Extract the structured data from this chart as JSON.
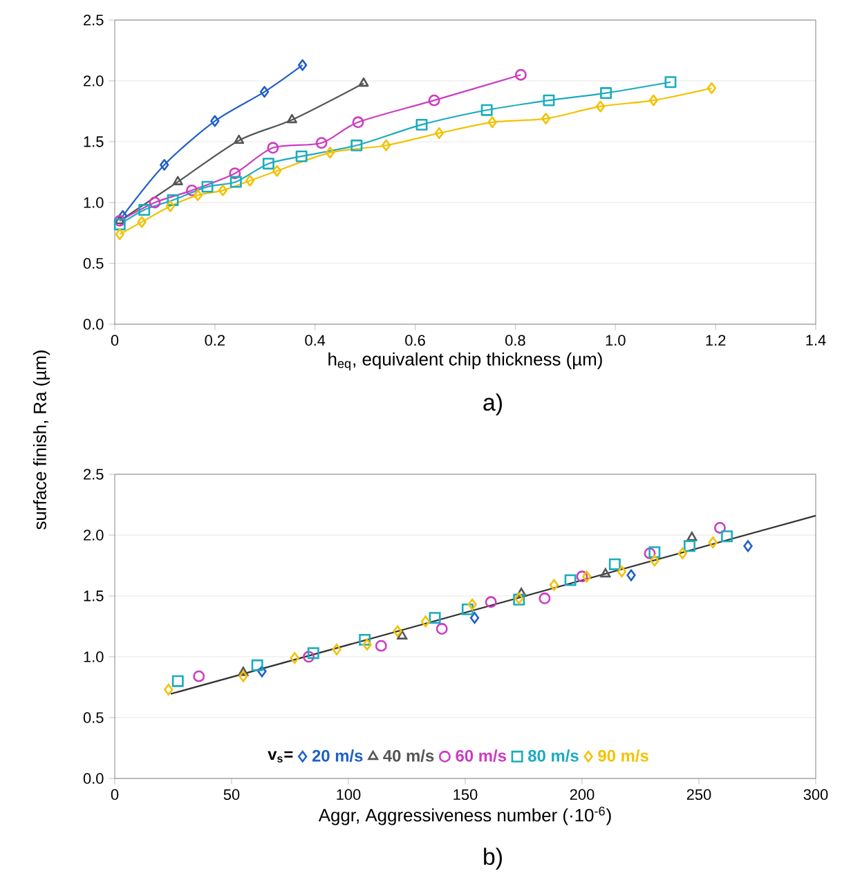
{
  "chart_data": [
    {
      "type": "line",
      "xlabel": "h$_{eq}$, equivalent chip thickness (µm)",
      "ylabel": "surface finish, Ra (µm)",
      "annotations": [
        "a)"
      ],
      "xlim": [
        0,
        1.4
      ],
      "ylim": [
        0,
        2.5
      ],
      "xticks": [
        {
          "value": 0,
          "label": "0"
        },
        {
          "value": 0.2,
          "label": "0.2"
        },
        {
          "value": 0.4,
          "label": "0.4"
        },
        {
          "value": 0.6,
          "label": "0.6"
        },
        {
          "value": 0.8,
          "label": "0.8"
        },
        {
          "value": 1,
          "label": "1.0"
        },
        {
          "value": 1.2,
          "label": "1.2"
        },
        {
          "value": 1.4,
          "label": "1.4"
        }
      ],
      "yticks": [
        {
          "value": 0,
          "label": "0.0"
        },
        {
          "value": 0.5,
          "label": "0.5"
        },
        {
          "value": 1,
          "label": "1.0"
        },
        {
          "value": 1.5,
          "label": "1.5"
        },
        {
          "value": 2,
          "label": "2.0"
        },
        {
          "value": 2.5,
          "label": "2.5"
        }
      ],
      "grid": "y",
      "legend": false,
      "line_style": "solid",
      "series": [
        {
          "color": "#1f5fc8",
          "marker": "diamond",
          "x": [
            0.016,
            0.099,
            0.2,
            0.299,
            0.375
          ],
          "values": [
            0.89,
            1.31,
            1.67,
            1.91,
            2.13
          ]
        },
        {
          "color": "#555555",
          "marker": "triangle",
          "x": [
            0.01,
            0.126,
            0.248,
            0.354,
            0.497
          ],
          "values": [
            0.85,
            1.17,
            1.51,
            1.68,
            1.98
          ]
        },
        {
          "color": "#cc3cc0",
          "marker": "circle",
          "x": [
            0.01,
            0.08,
            0.154,
            0.24,
            0.316,
            0.413,
            0.486,
            0.638,
            0.811
          ],
          "values": [
            0.85,
            1.0,
            1.1,
            1.24,
            1.45,
            1.49,
            1.66,
            1.84,
            2.05
          ]
        },
        {
          "color": "#1aabbf",
          "marker": "square",
          "x": [
            0.01,
            0.059,
            0.116,
            0.185,
            0.242,
            0.307,
            0.373,
            0.483,
            0.613,
            0.743,
            0.867,
            0.981,
            1.11
          ],
          "values": [
            0.82,
            0.94,
            1.02,
            1.13,
            1.17,
            1.32,
            1.38,
            1.47,
            1.64,
            1.76,
            1.84,
            1.9,
            1.99
          ]
        },
        {
          "color": "#f2c200",
          "marker": "diamond",
          "x": [
            0.01,
            0.054,
            0.111,
            0.166,
            0.216,
            0.27,
            0.324,
            0.43,
            0.542,
            0.648,
            0.754,
            0.861,
            0.97,
            1.076,
            1.192
          ],
          "values": [
            0.74,
            0.84,
            0.97,
            1.06,
            1.1,
            1.18,
            1.26,
            1.41,
            1.47,
            1.57,
            1.66,
            1.69,
            1.79,
            1.84,
            1.94
          ]
        }
      ]
    },
    {
      "type": "scatter",
      "xlabel": "Aggr, Aggressiveness number (·10$^{-6}$)",
      "annotations": [
        "b)"
      ],
      "legend_title": "v$_{s}$=",
      "xlim": [
        0,
        300
      ],
      "ylim": [
        0,
        2.5
      ],
      "xticks": [
        0,
        50,
        100,
        150,
        200,
        250,
        300
      ],
      "yticks": [
        {
          "value": 0,
          "label": "0.0"
        },
        {
          "value": 0.5,
          "label": "0.5"
        },
        {
          "value": 1,
          "label": "1.0"
        },
        {
          "value": 1.5,
          "label": "1.5"
        },
        {
          "value": 2,
          "label": "2.0"
        },
        {
          "value": 2.5,
          "label": "2.5"
        }
      ],
      "grid": "y",
      "legend": "bottom",
      "series": [
        {
          "name": "20 m/s",
          "color": "#1f5fc8",
          "marker": "diamond",
          "x": [
            63,
            154,
            221,
            271
          ],
          "values": [
            0.88,
            1.32,
            1.67,
            1.91
          ]
        },
        {
          "name": "40 m/s",
          "color": "#555555",
          "marker": "triangle",
          "x": [
            55,
            123,
            174,
            210,
            247
          ],
          "values": [
            0.87,
            1.17,
            1.52,
            1.68,
            1.98
          ]
        },
        {
          "name": "60 m/s",
          "color": "#cc3cc0",
          "marker": "circle",
          "x": [
            36,
            83,
            114,
            140,
            161,
            184,
            200,
            229,
            259
          ],
          "values": [
            0.84,
            1.0,
            1.09,
            1.23,
            1.45,
            1.48,
            1.66,
            1.85,
            2.06
          ]
        },
        {
          "name": "80 m/s",
          "color": "#1aabbf",
          "marker": "square",
          "x": [
            27,
            61,
            85,
            107,
            137,
            151,
            173,
            195,
            214,
            231,
            246,
            262
          ],
          "values": [
            0.8,
            0.93,
            1.03,
            1.14,
            1.32,
            1.39,
            1.47,
            1.63,
            1.76,
            1.86,
            1.91,
            1.99
          ]
        },
        {
          "name": "90 m/s",
          "color": "#f2c200",
          "marker": "diamond",
          "x": [
            23,
            55,
            77,
            95,
            108,
            121,
            133,
            153,
            173,
            188,
            202,
            217,
            231,
            243,
            256
          ],
          "values": [
            0.73,
            0.84,
            0.99,
            1.06,
            1.1,
            1.21,
            1.29,
            1.43,
            1.48,
            1.59,
            1.66,
            1.7,
            1.79,
            1.85,
            1.94
          ]
        },
        {
          "type": "line",
          "color": "#333333",
          "marker": "none",
          "line_style": "solid",
          "x": [
            24,
            300
          ],
          "values": [
            0.695,
            2.16
          ]
        }
      ]
    }
  ]
}
